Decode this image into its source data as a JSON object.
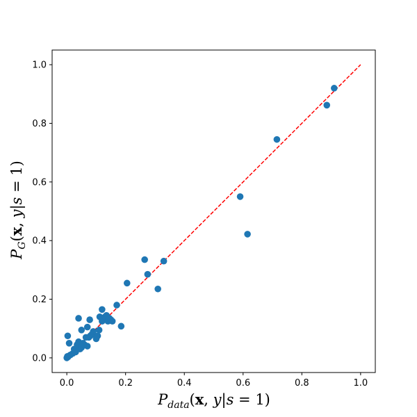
{
  "chart_data": {
    "type": "scatter",
    "xlabel": "P_data(x, y|s = 1)",
    "ylabel": "P_G(x, y|s = 1)",
    "xlim": [
      -0.05,
      1.05
    ],
    "ylim": [
      -0.05,
      1.05
    ],
    "x_ticks": [
      "0.0",
      "0.2",
      "0.4",
      "0.6",
      "0.8",
      "1.0"
    ],
    "y_ticks": [
      "0.0",
      "0.2",
      "0.4",
      "0.6",
      "0.8",
      "1.0"
    ],
    "grid": false,
    "legend": "none",
    "marker_color": "#1f77b4",
    "reference_line": {
      "from": [
        0,
        0
      ],
      "to": [
        1,
        1
      ],
      "style": "dashed",
      "color": "#ff0000"
    },
    "points": [
      [
        0.0,
        0.0
      ],
      [
        0.002,
        0.005
      ],
      [
        0.004,
        0.003
      ],
      [
        0.003,
        0.075
      ],
      [
        0.008,
        0.05
      ],
      [
        0.012,
        0.01
      ],
      [
        0.02,
        0.015
      ],
      [
        0.025,
        0.03
      ],
      [
        0.03,
        0.02
      ],
      [
        0.035,
        0.045
      ],
      [
        0.04,
        0.135
      ],
      [
        0.04,
        0.055
      ],
      [
        0.045,
        0.03
      ],
      [
        0.05,
        0.095
      ],
      [
        0.05,
        0.035
      ],
      [
        0.055,
        0.05
      ],
      [
        0.06,
        0.045
      ],
      [
        0.065,
        0.07
      ],
      [
        0.07,
        0.04
      ],
      [
        0.07,
        0.105
      ],
      [
        0.075,
        0.07
      ],
      [
        0.078,
        0.13
      ],
      [
        0.08,
        0.075
      ],
      [
        0.085,
        0.08
      ],
      [
        0.09,
        0.09
      ],
      [
        0.1,
        0.065
      ],
      [
        0.105,
        0.075
      ],
      [
        0.11,
        0.095
      ],
      [
        0.112,
        0.14
      ],
      [
        0.12,
        0.165
      ],
      [
        0.12,
        0.125
      ],
      [
        0.125,
        0.13
      ],
      [
        0.13,
        0.14
      ],
      [
        0.135,
        0.145
      ],
      [
        0.14,
        0.125
      ],
      [
        0.145,
        0.135
      ],
      [
        0.15,
        0.13
      ],
      [
        0.155,
        0.125
      ],
      [
        0.17,
        0.18
      ],
      [
        0.185,
        0.108
      ],
      [
        0.205,
        0.255
      ],
      [
        0.265,
        0.335
      ],
      [
        0.275,
        0.285
      ],
      [
        0.31,
        0.235
      ],
      [
        0.33,
        0.33
      ],
      [
        0.59,
        0.55
      ],
      [
        0.615,
        0.422
      ],
      [
        0.715,
        0.745
      ],
      [
        0.885,
        0.862
      ],
      [
        0.91,
        0.92
      ]
    ]
  }
}
